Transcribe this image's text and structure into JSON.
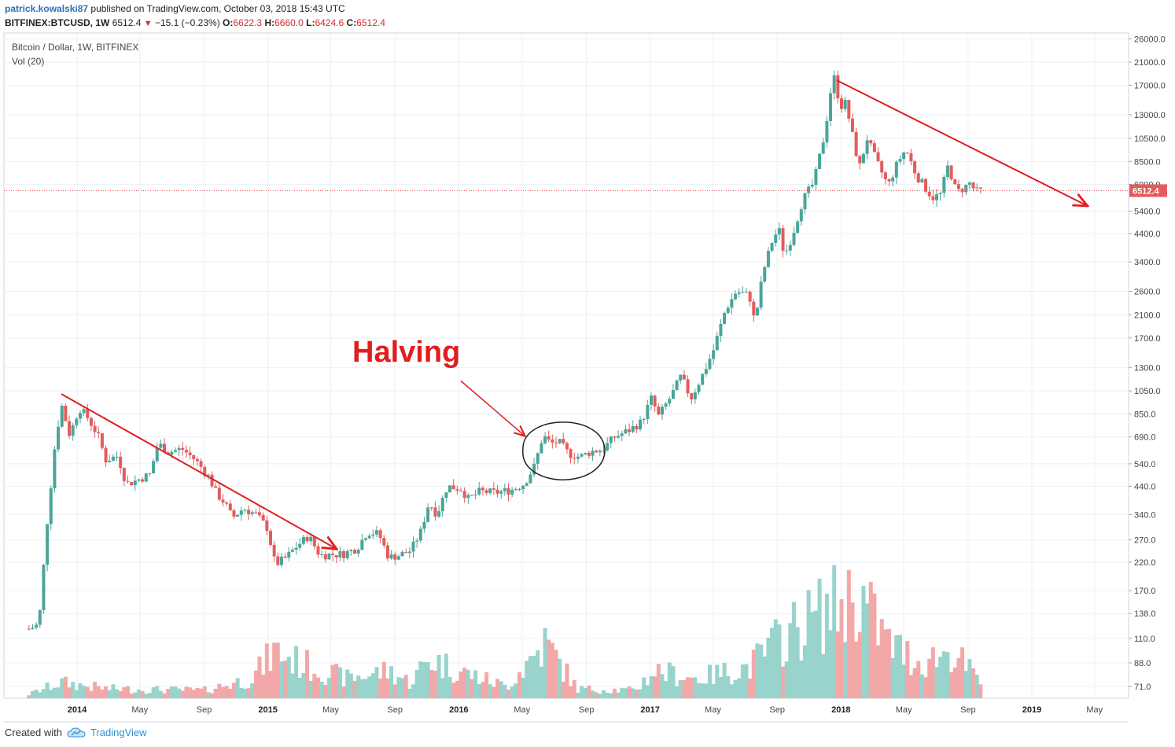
{
  "header": {
    "username": "patrick.kowalski87",
    "published": "published on TradingView.com, October 03, 2018 15:43 UTC",
    "symbol": "BITFINEX:BTCUSD, 1W",
    "last": "6512.4",
    "change": "−15.1 (−0.23%)",
    "o_label": "O:",
    "o_val": "6622.3",
    "h_label": "H:",
    "h_val": "6660.0",
    "l_label": "L:",
    "l_val": "6424.6",
    "c_label": "C:",
    "c_val": "6512.4"
  },
  "legend": {
    "title": "Bitcoin / Dollar, 1W, BITFINEX",
    "volume": "Vol (20)"
  },
  "footer": {
    "created_with": "Created with",
    "brand": "TradingView"
  },
  "colors": {
    "up": "#4ba598",
    "down": "#e35c5c",
    "up_vol": "#98d3cc",
    "down_vol": "#f3a8a8",
    "annotation": "#e01e1e",
    "grid": "#e9f1f5"
  },
  "chart_data": {
    "type": "candlestick",
    "y_scale": "log",
    "price_ticks": [
      "26000.0",
      "21000.0",
      "17000.0",
      "13000.0",
      "10500.0",
      "8500.0",
      "6900.0",
      "5400.0",
      "4400.0",
      "3400.0",
      "2600.0",
      "2100.0",
      "1700.0",
      "1300.0",
      "1050.0",
      "850.0",
      "690.0",
      "540.0",
      "440.0",
      "340.0",
      "270.0",
      "220.0",
      "170.0",
      "138.0",
      "110.0",
      "88.0",
      "71.0"
    ],
    "last_price_label": "6512.4",
    "x_ticks": [
      "2014",
      "May",
      "Sep",
      "2015",
      "May",
      "Sep",
      "2016",
      "May",
      "Sep",
      "2017",
      "May",
      "Sep",
      "2018",
      "May",
      "Sep",
      "2019",
      "May"
    ],
    "anchors": [
      [
        "2013-10-01",
        120
      ],
      [
        "2013-10-20",
        125
      ],
      [
        "2013-11-05",
        320
      ],
      [
        "2013-11-20",
        650
      ],
      [
        "2013-12-02",
        930
      ],
      [
        "2013-12-18",
        700
      ],
      [
        "2014-01-05",
        900
      ],
      [
        "2014-01-20",
        830
      ],
      [
        "2014-02-10",
        700
      ],
      [
        "2014-02-25",
        560
      ],
      [
        "2014-03-20",
        580
      ],
      [
        "2014-04-05",
        450
      ],
      [
        "2014-04-20",
        460
      ],
      [
        "2014-05-20",
        490
      ],
      [
        "2014-06-05",
        650
      ],
      [
        "2014-06-25",
        600
      ],
      [
        "2014-07-20",
        620
      ],
      [
        "2014-08-15",
        560
      ],
      [
        "2014-09-10",
        480
      ],
      [
        "2014-09-25",
        410
      ],
      [
        "2014-10-10",
        380
      ],
      [
        "2014-10-25",
        330
      ],
      [
        "2014-11-15",
        360
      ],
      [
        "2014-12-10",
        340
      ],
      [
        "2014-12-31",
        300
      ],
      [
        "2015-01-15",
        215
      ],
      [
        "2015-02-05",
        230
      ],
      [
        "2015-02-25",
        255
      ],
      [
        "2015-03-20",
        280
      ],
      [
        "2015-04-10",
        235
      ],
      [
        "2015-05-01",
        236
      ],
      [
        "2015-05-25",
        237
      ],
      [
        "2015-06-20",
        250
      ],
      [
        "2015-07-10",
        290
      ],
      [
        "2015-08-01",
        285
      ],
      [
        "2015-08-20",
        230
      ],
      [
        "2015-09-10",
        235
      ],
      [
        "2015-10-01",
        245
      ],
      [
        "2015-10-20",
        290
      ],
      [
        "2015-11-05",
        380
      ],
      [
        "2015-11-20",
        340
      ],
      [
        "2015-12-10",
        440
      ],
      [
        "2016-01-05",
        430
      ],
      [
        "2016-01-20",
        390
      ],
      [
        "2016-02-10",
        420
      ],
      [
        "2016-03-10",
        415
      ],
      [
        "2016-04-10",
        425
      ],
      [
        "2016-05-05",
        450
      ],
      [
        "2016-05-25",
        530
      ],
      [
        "2016-06-10",
        700
      ],
      [
        "2016-06-25",
        650
      ],
      [
        "2016-07-10",
        660
      ],
      [
        "2016-07-30",
        590
      ],
      [
        "2016-08-20",
        575
      ],
      [
        "2016-09-10",
        605
      ],
      [
        "2016-10-01",
        615
      ],
      [
        "2016-10-25",
        690
      ],
      [
        "2016-11-20",
        730
      ],
      [
        "2016-12-15",
        790
      ],
      [
        "2017-01-05",
        1000
      ],
      [
        "2017-01-15",
        820
      ],
      [
        "2017-02-10",
        1000
      ],
      [
        "2017-03-01",
        1200
      ],
      [
        "2017-03-20",
        980
      ],
      [
        "2017-04-10",
        1200
      ],
      [
        "2017-05-01",
        1500
      ],
      [
        "2017-05-25",
        2200
      ],
      [
        "2017-06-15",
        2600
      ],
      [
        "2017-07-10",
        2500
      ],
      [
        "2017-07-20",
        1950
      ],
      [
        "2017-08-05",
        3100
      ],
      [
        "2017-08-25",
        4300
      ],
      [
        "2017-09-05",
        4500
      ],
      [
        "2017-09-15",
        3600
      ],
      [
        "2017-10-01",
        4400
      ],
      [
        "2017-10-20",
        6000
      ],
      [
        "2017-11-10",
        7000
      ],
      [
        "2017-12-01",
        11000
      ],
      [
        "2017-12-17",
        19000
      ],
      [
        "2017-12-31",
        14000
      ],
      [
        "2018-01-10",
        14500
      ],
      [
        "2018-02-05",
        8000
      ],
      [
        "2018-02-20",
        10500
      ],
      [
        "2018-03-10",
        8500
      ],
      [
        "2018-04-01",
        6800
      ],
      [
        "2018-04-20",
        8500
      ],
      [
        "2018-05-05",
        9500
      ],
      [
        "2018-05-25",
        7500
      ],
      [
        "2018-06-25",
        6100
      ],
      [
        "2018-07-10",
        6300
      ],
      [
        "2018-07-25",
        8200
      ],
      [
        "2018-08-10",
        6400
      ],
      [
        "2018-08-25",
        6700
      ],
      [
        "2018-09-05",
        7000
      ],
      [
        "2018-09-15",
        6450
      ],
      [
        "2018-10-01",
        6512
      ]
    ],
    "volume_anchors": [
      [
        "2013-10-01",
        5
      ],
      [
        "2013-12-01",
        20
      ],
      [
        "2014-03-01",
        12
      ],
      [
        "2014-09-01",
        10
      ],
      [
        "2014-12-01",
        25
      ],
      [
        "2015-01-15",
        60
      ],
      [
        "2015-03-01",
        45
      ],
      [
        "2015-06-01",
        25
      ],
      [
        "2015-08-20",
        35
      ],
      [
        "2015-10-01",
        20
      ],
      [
        "2015-11-05",
        50
      ],
      [
        "2016-01-01",
        35
      ],
      [
        "2016-04-01",
        15
      ],
      [
        "2016-06-15",
        70
      ],
      [
        "2016-08-15",
        12
      ],
      [
        "2016-12-01",
        10
      ],
      [
        "2017-01-10",
        35
      ],
      [
        "2017-04-01",
        25
      ],
      [
        "2017-07-10",
        40
      ],
      [
        "2017-09-15",
        80
      ],
      [
        "2017-12-15",
        115
      ],
      [
        "2018-02-05",
        130
      ],
      [
        "2018-04-01",
        70
      ],
      [
        "2018-06-01",
        45
      ],
      [
        "2018-08-01",
        60
      ],
      [
        "2018-10-01",
        15
      ]
    ],
    "annotations": {
      "halving_label": "Halving",
      "trendlines": [
        [
          [
            "2013-12-02",
            1020
          ],
          [
            "2015-05-10",
            250
          ]
        ],
        [
          [
            "2017-12-24",
            17800
          ],
          [
            "2019-04-15",
            5700
          ]
        ]
      ],
      "arrow": [
        [
          "2016-01-05",
          1150
        ],
        [
          "2016-05-05",
          700
        ]
      ],
      "circle_center": [
        "2016-07-20",
        610
      ]
    }
  }
}
